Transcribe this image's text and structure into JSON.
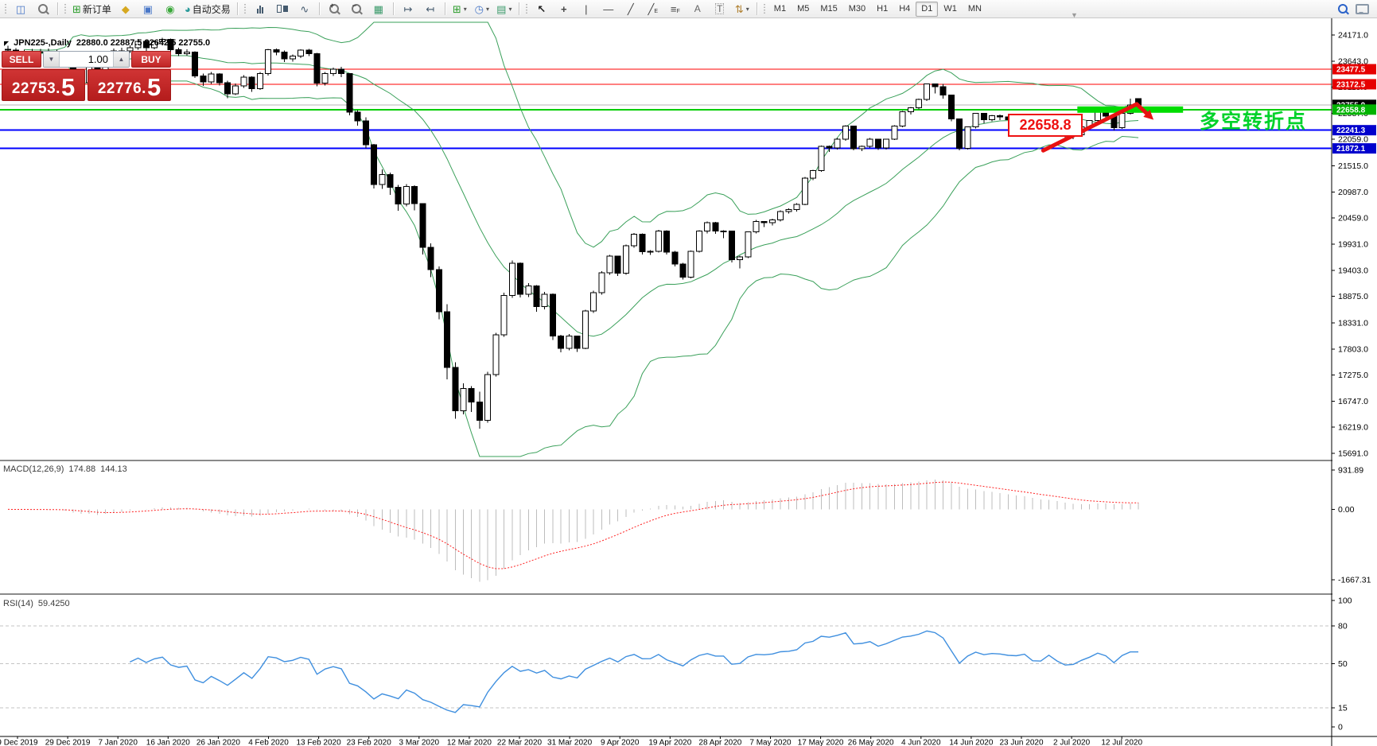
{
  "toolbar": {
    "new_order_label": "新订单",
    "autotrade_label": "自动交易",
    "timeframes": [
      "M1",
      "M5",
      "M15",
      "M30",
      "H1",
      "H4",
      "D1",
      "W1",
      "MN"
    ],
    "active_timeframe": "D1"
  },
  "trade_panel": {
    "sell_label": "SELL",
    "buy_label": "BUY",
    "volume": "1.00",
    "sell_price_base": "22753.",
    "sell_price_big": "5",
    "buy_price_base": "22776.",
    "buy_price_big": "5"
  },
  "title": {
    "symbol_period": "JPN225-,Daily",
    "ohlc": "22880.0 22887.5 22642.5 22755.0"
  },
  "annotations": {
    "price_box": "22658.8",
    "turning_point": "多空转折点"
  },
  "chart_data": {
    "type": "candlestick",
    "symbol": "JPN225-",
    "timeframe": "Daily",
    "x_labels": [
      "9 Dec 2019",
      "29 Dec 2019",
      "7 Jan 2020",
      "16 Jan 2020",
      "26 Jan 2020",
      "4 Feb 2020",
      "13 Feb 2020",
      "23 Feb 2020",
      "3 Mar 2020",
      "12 Mar 2020",
      "22 Mar 2020",
      "31 Mar 2020",
      "9 Apr 2020",
      "19 Apr 2020",
      "28 Apr 2020",
      "7 May 2020",
      "17 May 2020",
      "26 May 2020",
      "4 Jun 2020",
      "14 Jun 2020",
      "23 Jun 2020",
      "2 Jul 2020",
      "12 Jul 2020"
    ],
    "y_ticks": [
      24171.0,
      23643.0,
      23115.0,
      22587.0,
      22059.0,
      21515.0,
      20987.0,
      20459.0,
      19931.0,
      19403.0,
      18875.0,
      18331.0,
      17803.0,
      17275.0,
      16747.0,
      16219.0,
      15691.0
    ],
    "ohlc": [
      [
        23880,
        23950,
        23800,
        23864
      ],
      [
        23864,
        23905,
        23775,
        23830
      ],
      [
        23830,
        23870,
        23760,
        23816
      ],
      [
        23816,
        23885,
        23770,
        23821
      ],
      [
        23821,
        23890,
        23778,
        23830
      ],
      [
        23830,
        23900,
        23785,
        23837
      ],
      [
        23837,
        23870,
        23720,
        23782
      ],
      [
        23782,
        23810,
        23610,
        23657
      ],
      [
        23657,
        23670,
        23170,
        23205
      ],
      [
        23205,
        23260,
        23050,
        23205
      ],
      [
        23205,
        23580,
        23190,
        23575
      ],
      [
        23575,
        23620,
        22950,
        23204
      ],
      [
        23204,
        23740,
        23190,
        23740
      ],
      [
        23740,
        23900,
        23700,
        23850
      ],
      [
        23850,
        23910,
        23790,
        23851
      ],
      [
        23851,
        23960,
        23810,
        23916
      ],
      [
        23916,
        24090,
        23870,
        24041
      ],
      [
        24041,
        24060,
        23850,
        23917
      ],
      [
        23917,
        24070,
        23880,
        24031
      ],
      [
        24031,
        24115,
        23970,
        24084
      ],
      [
        24084,
        24100,
        23820,
        23869
      ],
      [
        23869,
        23910,
        23740,
        23795
      ],
      [
        23795,
        23880,
        23750,
        23828
      ],
      [
        23828,
        23840,
        23300,
        23343
      ],
      [
        23343,
        23390,
        23140,
        23216
      ],
      [
        23216,
        23420,
        23180,
        23379
      ],
      [
        23379,
        23400,
        23150,
        23205
      ],
      [
        23205,
        23240,
        22890,
        22977
      ],
      [
        22977,
        23190,
        22950,
        23139
      ],
      [
        23139,
        23360,
        23100,
        23320
      ],
      [
        23320,
        23330,
        23020,
        23084
      ],
      [
        23084,
        23420,
        23060,
        23386
      ],
      [
        23386,
        23890,
        23350,
        23874
      ],
      [
        23874,
        23900,
        23760,
        23828
      ],
      [
        23828,
        23860,
        23620,
        23686
      ],
      [
        23686,
        23780,
        23630,
        23740
      ],
      [
        23740,
        23880,
        23700,
        23861
      ],
      [
        23861,
        23890,
        23740,
        23795
      ],
      [
        23795,
        23810,
        23130,
        23193
      ],
      [
        23193,
        23420,
        23150,
        23386
      ],
      [
        23386,
        23510,
        23340,
        23479
      ],
      [
        23479,
        23530,
        23320,
        23387
      ],
      [
        23387,
        23390,
        22540,
        22605
      ],
      [
        22605,
        22650,
        22330,
        22426
      ],
      [
        22426,
        22500,
        21870,
        21948
      ],
      [
        21948,
        21960,
        21060,
        21143
      ],
      [
        21143,
        21450,
        21050,
        21344
      ],
      [
        21344,
        21380,
        20930,
        21083
      ],
      [
        21083,
        21130,
        20610,
        20749
      ],
      [
        20749,
        21150,
        20700,
        21100
      ],
      [
        21100,
        21120,
        20620,
        20750
      ],
      [
        20750,
        20760,
        19720,
        19868
      ],
      [
        19868,
        19950,
        19260,
        19416
      ],
      [
        19416,
        19480,
        18410,
        18560
      ],
      [
        18560,
        18710,
        17190,
        17431
      ],
      [
        17431,
        17540,
        16390,
        16553
      ],
      [
        16553,
        17110,
        16480,
        17002
      ],
      [
        17002,
        17050,
        16530,
        16727
      ],
      [
        16727,
        16940,
        16190,
        16358
      ],
      [
        16358,
        17340,
        16310,
        17284
      ],
      [
        17284,
        18130,
        17250,
        18092
      ],
      [
        18092,
        18950,
        18050,
        18890
      ],
      [
        18890,
        19600,
        18840,
        19546
      ],
      [
        19546,
        19560,
        18850,
        18917
      ],
      [
        18917,
        19140,
        18860,
        19085
      ],
      [
        19085,
        19100,
        18560,
        18664
      ],
      [
        18664,
        18960,
        18610,
        18917
      ],
      [
        18917,
        18930,
        17990,
        18065
      ],
      [
        18065,
        18090,
        17740,
        17820
      ],
      [
        17820,
        18110,
        17780,
        18065
      ],
      [
        18065,
        18080,
        17750,
        17818
      ],
      [
        17818,
        18600,
        17800,
        18576
      ],
      [
        18576,
        18990,
        18540,
        18950
      ],
      [
        18950,
        19380,
        18910,
        19353
      ],
      [
        19353,
        19710,
        19310,
        19690
      ],
      [
        19690,
        19700,
        19290,
        19345
      ],
      [
        19345,
        19920,
        19310,
        19897
      ],
      [
        19897,
        20160,
        19860,
        20134
      ],
      [
        20134,
        20150,
        19720,
        19775
      ],
      [
        19775,
        19810,
        19710,
        19783
      ],
      [
        19783,
        20220,
        19760,
        20194
      ],
      [
        20194,
        20210,
        19720,
        19771
      ],
      [
        19771,
        19790,
        19480,
        19529
      ],
      [
        19529,
        19550,
        19210,
        19262
      ],
      [
        19262,
        19800,
        19240,
        19783
      ],
      [
        19783,
        20210,
        19760,
        20193
      ],
      [
        20193,
        20390,
        20150,
        20366
      ],
      [
        20366,
        20380,
        20140,
        20194
      ],
      [
        20194,
        20210,
        20050,
        20194
      ],
      [
        20194,
        20200,
        19560,
        19619
      ],
      [
        19619,
        19700,
        19440,
        19674
      ],
      [
        19674,
        20190,
        19650,
        20179
      ],
      [
        20179,
        20420,
        20150,
        20390
      ],
      [
        20390,
        20400,
        20280,
        20366
      ],
      [
        20366,
        20450,
        20310,
        20426
      ],
      [
        20426,
        20620,
        20390,
        20595
      ],
      [
        20595,
        20660,
        20550,
        20634
      ],
      [
        20634,
        20760,
        20590,
        20741
      ],
      [
        20741,
        21290,
        20720,
        21271
      ],
      [
        21271,
        21440,
        21230,
        21419
      ],
      [
        21419,
        21930,
        21400,
        21916
      ],
      [
        21916,
        21930,
        21800,
        21878
      ],
      [
        21878,
        22080,
        21850,
        22062
      ],
      [
        22062,
        22340,
        22030,
        22325
      ],
      [
        22325,
        22330,
        21830,
        21867
      ],
      [
        21867,
        21930,
        21820,
        21916
      ],
      [
        21916,
        22080,
        21880,
        22062
      ],
      [
        22062,
        22070,
        21840,
        21878
      ],
      [
        21878,
        22070,
        21850,
        22062
      ],
      [
        22062,
        22340,
        22040,
        22326
      ],
      [
        22326,
        22630,
        22300,
        22614
      ],
      [
        22614,
        22710,
        22560,
        22696
      ],
      [
        22696,
        22880,
        22660,
        22864
      ],
      [
        22864,
        23190,
        22830,
        23178
      ],
      [
        23178,
        23185,
        22990,
        23125
      ],
      [
        23125,
        23180,
        22880,
        22950
      ],
      [
        22950,
        22960,
        22420,
        22472
      ],
      [
        22472,
        22480,
        21830,
        21870
      ],
      [
        21870,
        22320,
        21850,
        22305
      ],
      [
        22305,
        22590,
        22280,
        22582
      ],
      [
        22582,
        22590,
        22380,
        22455
      ],
      [
        22455,
        22550,
        22420,
        22534
      ],
      [
        22534,
        22560,
        22450,
        22512
      ],
      [
        22512,
        22520,
        22390,
        22455
      ],
      [
        22455,
        22470,
        22380,
        22437
      ],
      [
        22437,
        22530,
        22400,
        22512
      ],
      [
        22512,
        22520,
        22210,
        22259
      ],
      [
        22259,
        22270,
        22190,
        22245
      ],
      [
        22245,
        22520,
        22220,
        22512
      ],
      [
        22512,
        22520,
        22230,
        22288
      ],
      [
        22288,
        22300,
        22070,
        22121
      ],
      [
        22121,
        22160,
        22060,
        22146
      ],
      [
        22146,
        22320,
        22120,
        22306
      ],
      [
        22306,
        22450,
        22280,
        22439
      ],
      [
        22439,
        22630,
        22410,
        22615
      ],
      [
        22615,
        22625,
        22480,
        22529
      ],
      [
        22529,
        22540,
        22240,
        22291
      ],
      [
        22291,
        22600,
        22270,
        22587
      ],
      [
        22587,
        22880,
        22560,
        22755
      ],
      [
        22880,
        22887.5,
        22642.5,
        22755
      ]
    ],
    "bollinger": {
      "period": 20,
      "deviation": 2,
      "color": "#3aa05a"
    },
    "h_lines": [
      {
        "price": 23477.5,
        "color": "#ff0000",
        "width": 1,
        "tag_bg": "#e60000"
      },
      {
        "price": 23172.5,
        "color": "#ff0000",
        "width": 1,
        "tag_bg": "#e60000"
      },
      {
        "price": 22755.0,
        "color": "#b4b4b4",
        "width": 1,
        "tag_bg": "#000000"
      },
      {
        "price": 22658.8,
        "color": "#00cc00",
        "width": 2,
        "tag_bg": "#00b400"
      },
      {
        "price": 22241.3,
        "color": "#0000ff",
        "width": 2,
        "tag_bg": "#0000cd"
      },
      {
        "price": 21872.1,
        "color": "#0000ff",
        "width": 2,
        "tag_bg": "#0000cd"
      }
    ],
    "green_bar": {
      "price": 22658.8,
      "from_index": 131.5,
      "to_index": 144.5,
      "thickness": 8,
      "color": "#00dd00"
    },
    "trend_arrow": {
      "from": {
        "index": 127.3,
        "price": 21830
      },
      "to": {
        "index": 138.8,
        "price": 22770
      },
      "tip": {
        "index": 140.3,
        "price": 22540
      },
      "color": "#e81111"
    },
    "indicators": [
      {
        "name": "MACD",
        "name_display": "MACD(12,26,9)",
        "value_main": "174.88",
        "value_signal": "144.13",
        "params": {
          "fast": 12,
          "slow": 26,
          "signal": 9
        },
        "axis_ticks": [
          "931.89",
          "0.00",
          "-1667.31"
        ],
        "axis_tick_values": [
          931.89,
          0,
          -1667.31
        ],
        "range": [
          -1950,
          1100
        ],
        "histogram_color": "#bdbdbd",
        "signal_color": "#ff2222"
      },
      {
        "name": "RSI",
        "name_display": "RSI(14)",
        "value": "59.4250",
        "period": 14,
        "levels": [
          80,
          50,
          15
        ],
        "axis_ticks": [
          "100",
          "80",
          "50",
          "15",
          "0"
        ],
        "axis_tick_values": [
          100,
          80,
          50,
          15,
          0
        ],
        "range": [
          0,
          100
        ],
        "color": "#3f8fdf"
      }
    ]
  }
}
